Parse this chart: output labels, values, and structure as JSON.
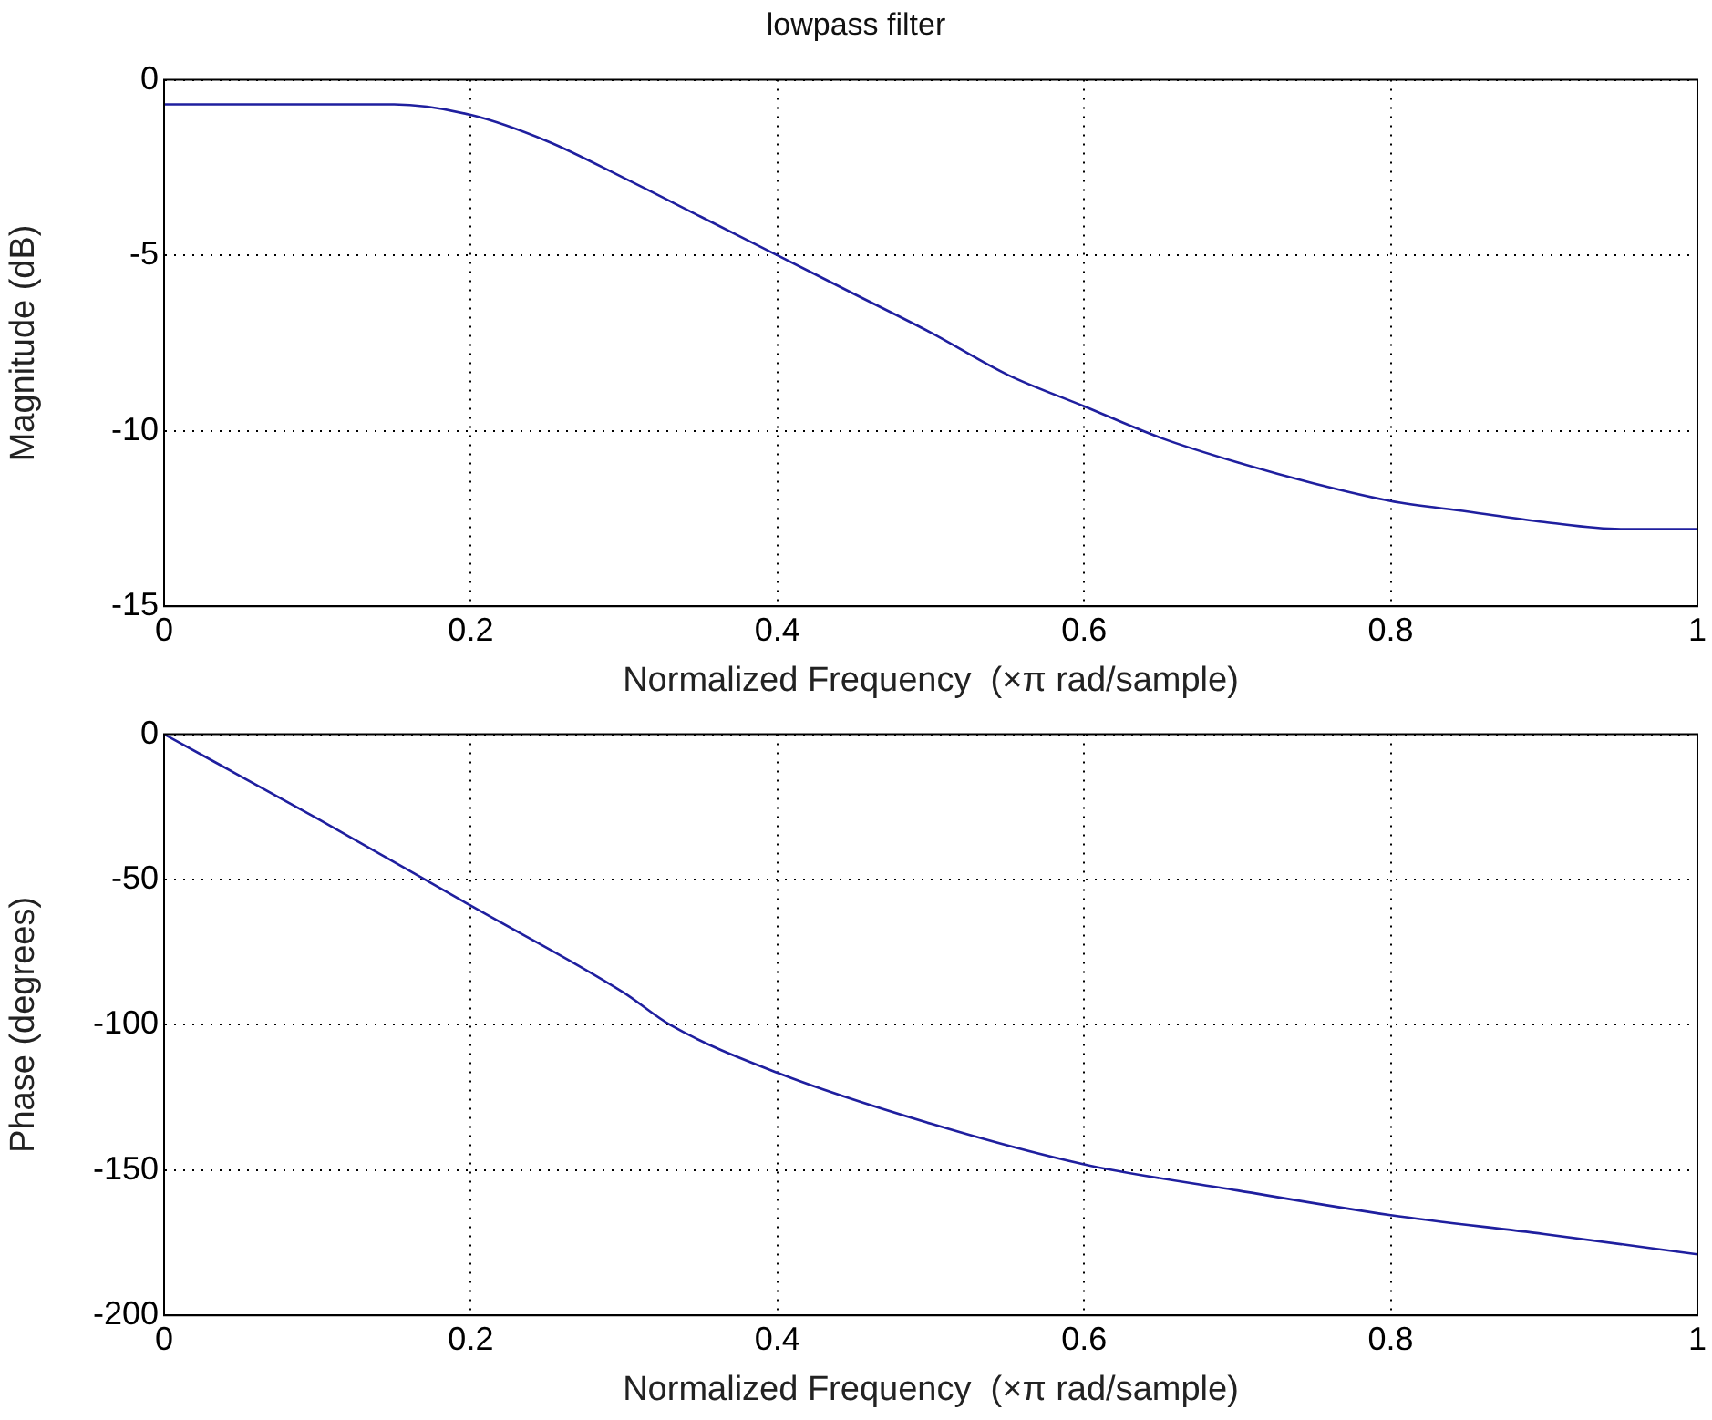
{
  "chart_data": [
    {
      "type": "line",
      "title": "lowpass filter",
      "xlabel": "Normalized Frequency  (×π rad/sample)",
      "ylabel": "Magnitude (dB)",
      "x": [
        0,
        0.05,
        0.1,
        0.15,
        0.2,
        0.25,
        0.3,
        0.35,
        0.4,
        0.45,
        0.5,
        0.55,
        0.6,
        0.65,
        0.7,
        0.75,
        0.8,
        0.85,
        0.9,
        0.95,
        1
      ],
      "series": [
        {
          "color": "#1f1f9f",
          "values": [
            -0.7,
            -0.7,
            -0.7,
            -0.7,
            -1.0,
            -1.75,
            -2.8,
            -3.9,
            -5.0,
            -6.1,
            -7.2,
            -8.4,
            -9.3,
            -10.2,
            -10.9,
            -11.5,
            -12.0,
            -12.3,
            -12.6,
            -12.8,
            -12.8
          ]
        }
      ],
      "xlim": [
        0,
        1
      ],
      "xticks": [
        0,
        0.2,
        0.4,
        0.6,
        0.8,
        1
      ],
      "ylim": [
        -15,
        0
      ],
      "yticks": [
        -15,
        -10,
        -5,
        0
      ],
      "grid": true,
      "legend": false,
      "marker": "none",
      "line_style": "solid"
    },
    {
      "type": "line",
      "xlabel": "Normalized Frequency  (×π rad/sample)",
      "ylabel": "Phase (degrees)",
      "x": [
        0,
        0.1,
        0.2,
        0.3,
        0.33,
        0.4,
        0.5,
        0.6,
        0.7,
        0.8,
        0.9,
        1
      ],
      "series": [
        {
          "color": "#1f1f9f",
          "values": [
            0,
            -29,
            -59,
            -89,
            -100,
            -116.5,
            -134,
            -148,
            -157,
            -165.5,
            -172,
            -179
          ]
        }
      ],
      "xlim": [
        0,
        1
      ],
      "xticks": [
        0,
        0.2,
        0.4,
        0.6,
        0.8,
        1
      ],
      "ylim": [
        -200,
        0
      ],
      "yticks": [
        -200,
        -150,
        -100,
        -50,
        0
      ],
      "grid": true,
      "legend": false,
      "marker": "none",
      "line_style": "solid"
    }
  ]
}
